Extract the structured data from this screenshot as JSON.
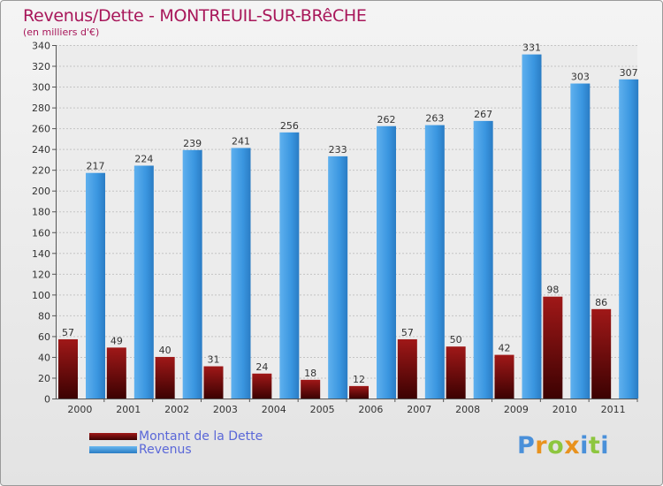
{
  "title": "Revenus/Dette - MONTREUIL-SUR-BRêCHE",
  "subtitle": "(en milliers d'€)",
  "brand": {
    "letters": [
      "P",
      "r",
      "o",
      "x",
      "i",
      "t",
      "i"
    ],
    "colors": [
      "#4a90d9",
      "#e8921e",
      "#8dc63f",
      "#e8921e",
      "#4a90d9",
      "#8dc63f",
      "#4a90d9"
    ]
  },
  "chart_data": {
    "type": "bar",
    "categories": [
      "2000",
      "2001",
      "2002",
      "2003",
      "2004",
      "2005",
      "2006",
      "2007",
      "2008",
      "2009",
      "2010",
      "2011"
    ],
    "series": [
      {
        "name": "Montant de la Dette",
        "color": "#7a0a0a",
        "values": [
          57,
          49,
          40,
          31,
          24,
          18,
          12,
          57,
          50,
          42,
          98,
          86
        ]
      },
      {
        "name": "Revenus",
        "color": "#3a96e0",
        "values": [
          217,
          224,
          239,
          241,
          256,
          233,
          262,
          263,
          267,
          331,
          303,
          307
        ]
      }
    ],
    "yticks": [
      0,
      20,
      40,
      60,
      80,
      100,
      120,
      140,
      160,
      180,
      200,
      220,
      240,
      260,
      280,
      300,
      320,
      340
    ],
    "ylim": [
      0,
      340
    ],
    "grid": true
  }
}
